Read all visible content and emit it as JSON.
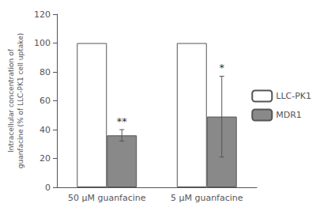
{
  "chart_data": {
    "type": "bar",
    "categories": [
      "50 μM guanfacine",
      "5 μM guanfacine"
    ],
    "series": [
      {
        "name": "LLC-PK1",
        "color": "#ffffff",
        "values": [
          100,
          100
        ],
        "errors": [
          0,
          0
        ]
      },
      {
        "name": "MDR1",
        "color": "#898989",
        "values": [
          36,
          49
        ],
        "errors": [
          4,
          28
        ]
      }
    ],
    "ylabel": "Intracellular concentration of\nguanfacine (% of LLC-PK1 cell uptake)",
    "ylim": [
      0,
      120
    ],
    "yticks": [
      0,
      20,
      40,
      60,
      80,
      100,
      120
    ],
    "annotations": [
      {
        "text": "**",
        "category": "50 μM guanfacine",
        "series": "MDR1"
      },
      {
        "text": "*",
        "category": "5 μM guanfacine",
        "series": "MDR1"
      }
    ],
    "legend": "right",
    "grid": false
  }
}
